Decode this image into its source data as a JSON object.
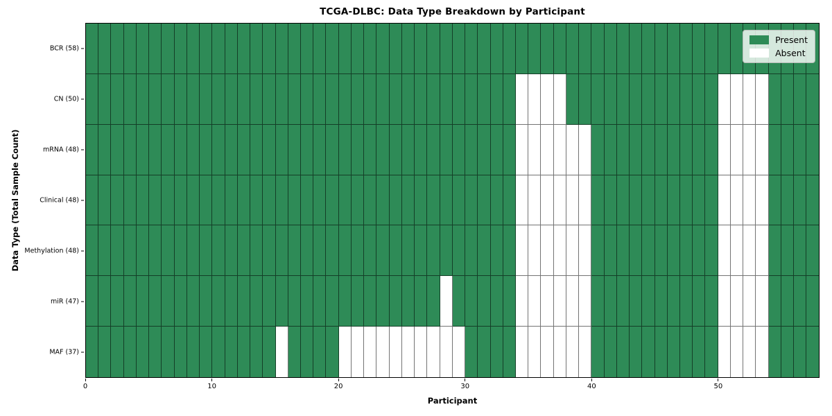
{
  "title": "TCGA-DLBC: Data Type Breakdown by Participant",
  "xlabel": "Participant",
  "ylabel": "Data Type (Total Sample Count)",
  "legend": {
    "present_label": "Present",
    "absent_label": "Absent"
  },
  "colors": {
    "present": "#2e8b57",
    "absent": "#ffffff",
    "grid_line": "rgba(0,0,0,0.55)",
    "frame": "#000000",
    "legend_bg": "rgba(255,255,255,0.8)"
  },
  "x_ticks": [
    0,
    10,
    20,
    30,
    40,
    50
  ],
  "chart_data": {
    "type": "heatmap",
    "title": "TCGA-DLBC: Data Type Breakdown by Participant",
    "xlabel": "Participant",
    "ylabel": "Data Type (Total Sample Count)",
    "x_range": [
      0,
      58
    ],
    "n_participants": 58,
    "legend_entries": [
      {
        "label": "Present",
        "value": 1
      },
      {
        "label": "Absent",
        "value": 0
      }
    ],
    "rows": [
      {
        "label": "BCR (58)",
        "data_type": "BCR",
        "total_samples": 58,
        "absent_participants": []
      },
      {
        "label": "CN (50)",
        "data_type": "CN",
        "total_samples": 50,
        "absent_participants": [
          34,
          35,
          36,
          37,
          50,
          51,
          52,
          53
        ]
      },
      {
        "label": "mRNA (48)",
        "data_type": "mRNA",
        "total_samples": 48,
        "absent_participants": [
          34,
          35,
          36,
          37,
          38,
          39,
          50,
          51,
          52,
          53
        ]
      },
      {
        "label": "Clinical (48)",
        "data_type": "Clinical",
        "total_samples": 48,
        "absent_participants": [
          34,
          35,
          36,
          37,
          38,
          39,
          50,
          51,
          52,
          53
        ]
      },
      {
        "label": "Methylation (48)",
        "data_type": "Methylation",
        "total_samples": 48,
        "absent_participants": [
          34,
          35,
          36,
          37,
          38,
          39,
          50,
          51,
          52,
          53
        ]
      },
      {
        "label": "miR (47)",
        "data_type": "miR",
        "total_samples": 47,
        "absent_participants": [
          28,
          34,
          35,
          36,
          37,
          38,
          39,
          50,
          51,
          52,
          53
        ]
      },
      {
        "label": "MAF (37)",
        "data_type": "MAF",
        "total_samples": 37,
        "absent_participants": [
          15,
          20,
          21,
          22,
          23,
          24,
          25,
          26,
          27,
          28,
          29,
          34,
          35,
          36,
          37,
          38,
          39,
          50,
          51,
          52,
          53
        ]
      }
    ]
  }
}
